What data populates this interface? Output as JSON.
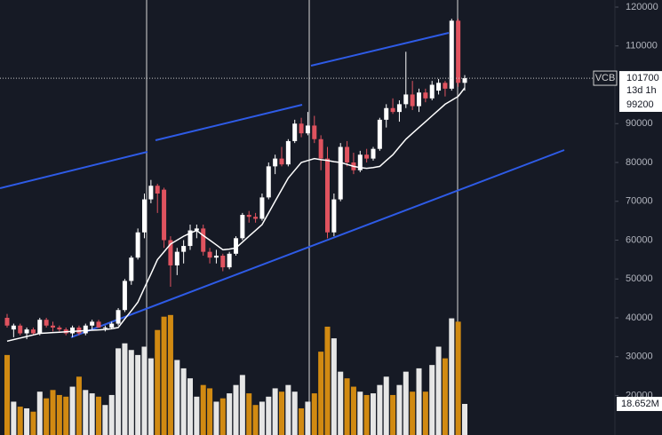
{
  "chart_data": {
    "type": "candlestick",
    "ticker": "VCB",
    "countdown": "13d 1h",
    "last_volume_label": "18.652M",
    "up_color": "#ffffff",
    "down_color": "#e0535f",
    "volume_up_color": "#e6e6e6",
    "volume_down_color": "#d18a12",
    "ma_color": "#ffffff",
    "ylim": [
      9829,
      121829
    ],
    "yticks": [
      20000,
      30000,
      40000,
      50000,
      60000,
      70000,
      80000,
      90000,
      110000,
      120000
    ],
    "volume_lim": [
      0,
      261
    ],
    "open": [
      40000,
      37000,
      38000,
      36000,
      37000,
      36000,
      39500,
      38000,
      37500,
      37000,
      36000,
      37500,
      36000,
      38000,
      39000,
      37500,
      37500,
      38500,
      42000,
      49500,
      55500,
      62000,
      70500,
      74000,
      73000,
      60000,
      53500,
      57000,
      58500,
      62500,
      63000,
      57000,
      55500,
      56000,
      53000,
      56500,
      60500,
      66500,
      66000,
      65500,
      71000,
      79000,
      81000,
      79500,
      85500,
      90000,
      87500,
      89500,
      86000,
      81000,
      62000,
      70500,
      84000,
      80000,
      78000,
      82000,
      81000,
      83500,
      91000,
      94000,
      93000,
      95000,
      97500,
      94500,
      98000,
      96500,
      98500,
      100500,
      99000,
      116500,
      100500
    ],
    "high": [
      41000,
      38500,
      38500,
      37500,
      37500,
      40000,
      40000,
      39000,
      38000,
      37500,
      38000,
      38000,
      38500,
      39500,
      39500,
      38000,
      39000,
      42500,
      50000,
      56000,
      63000,
      72000,
      75500,
      74500,
      73500,
      61000,
      58000,
      60000,
      64000,
      64000,
      64000,
      58000,
      57500,
      56500,
      57000,
      61000,
      67000,
      67500,
      67000,
      72000,
      80000,
      82000,
      84000,
      86000,
      91000,
      91500,
      93000,
      92000,
      87000,
      84000,
      72000,
      85000,
      85500,
      82500,
      83000,
      83500,
      84000,
      91500,
      95000,
      96500,
      96000,
      108500,
      101000,
      99000,
      99000,
      101000,
      101500,
      101000,
      117000,
      117000,
      102500
    ],
    "low": [
      37500,
      35000,
      35500,
      34500,
      35500,
      35500,
      37500,
      36500,
      36500,
      35500,
      35000,
      35500,
      35500,
      37000,
      37500,
      36500,
      37000,
      38000,
      41500,
      48500,
      55000,
      60500,
      69500,
      67000,
      58000,
      48000,
      51000,
      54000,
      57500,
      60500,
      56000,
      54000,
      54000,
      52000,
      52500,
      56000,
      60000,
      64500,
      64500,
      65000,
      70500,
      77000,
      79000,
      79000,
      85000,
      86500,
      87000,
      85000,
      78000,
      60500,
      61000,
      70000,
      79000,
      77000,
      77500,
      80000,
      80500,
      83000,
      89000,
      92500,
      90500,
      94000,
      93500,
      93000,
      95500,
      96000,
      97500,
      97000,
      98500,
      99500,
      98500
    ],
    "close": [
      38000,
      38000,
      36000,
      37000,
      36000,
      39500,
      38000,
      37500,
      37000,
      36000,
      37500,
      36000,
      38000,
      39000,
      37500,
      37500,
      38500,
      42000,
      49500,
      55500,
      62000,
      70500,
      74000,
      72000,
      60000,
      53500,
      57000,
      58500,
      62500,
      63000,
      57000,
      55500,
      56000,
      53000,
      56500,
      60500,
      66500,
      66000,
      65500,
      71000,
      79000,
      81000,
      79500,
      85500,
      90000,
      87500,
      89500,
      86000,
      81000,
      62000,
      70500,
      84000,
      80000,
      78000,
      82000,
      81000,
      83500,
      91000,
      94000,
      93000,
      95000,
      97500,
      94500,
      98000,
      96500,
      100000,
      100500,
      99000,
      116500,
      100500,
      101700
    ],
    "volume": [
      48,
      20,
      17,
      16,
      14,
      26,
      22,
      27,
      24,
      23,
      29,
      35,
      27,
      25,
      23,
      18,
      24,
      52,
      55,
      51,
      48,
      53,
      46,
      63,
      71,
      72,
      45,
      40,
      34,
      23,
      30,
      28,
      20,
      22,
      25,
      30,
      36,
      25,
      18,
      20,
      23,
      28,
      26,
      30,
      26,
      16,
      20,
      25,
      50,
      65,
      58,
      38,
      34,
      29,
      26,
      24,
      25,
      30,
      35,
      24,
      30,
      38,
      26,
      40,
      26,
      42,
      53,
      46,
      70,
      68,
      18.652
    ],
    "ma": [
      34000,
      34400,
      34800,
      35200,
      35600,
      36000,
      36100,
      36200,
      36300,
      36400,
      36500,
      36600,
      36700,
      36800,
      36900,
      37000,
      37200,
      37500,
      39700,
      41800,
      44000,
      47700,
      51300,
      55000,
      57000,
      59000,
      60000,
      61000,
      61800,
      62500,
      61200,
      60000,
      58800,
      57500,
      57700,
      58000,
      59500,
      61000,
      62500,
      64000,
      67000,
      70000,
      73000,
      76000,
      78000,
      80000,
      80500,
      81000,
      80700,
      80500,
      80200,
      80000,
      79500,
      79000,
      78700,
      78500,
      78700,
      79000,
      80500,
      82000,
      84000,
      86000,
      87500,
      89000,
      90500,
      92000,
      93500,
      95000,
      96000,
      97000,
      99200
    ]
  }
}
